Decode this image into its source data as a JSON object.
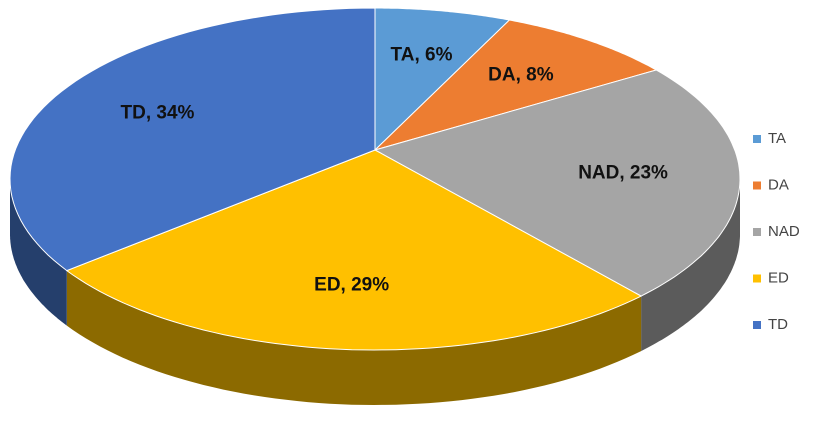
{
  "chart_data": {
    "type": "pie",
    "three_d": true,
    "categories": [
      "TA",
      "DA",
      "NAD",
      "ED",
      "TD"
    ],
    "values": [
      6,
      8,
      23,
      29,
      34
    ],
    "value_labels": [
      "TA, 6%",
      "DA, 8%",
      "NAD, 23%",
      "ED, 29%",
      "TD, 34%"
    ],
    "colors": [
      "#5b9bd5",
      "#ed7d31",
      "#a5a5a5",
      "#ffc000",
      "#4472c4"
    ],
    "legend": "right"
  }
}
